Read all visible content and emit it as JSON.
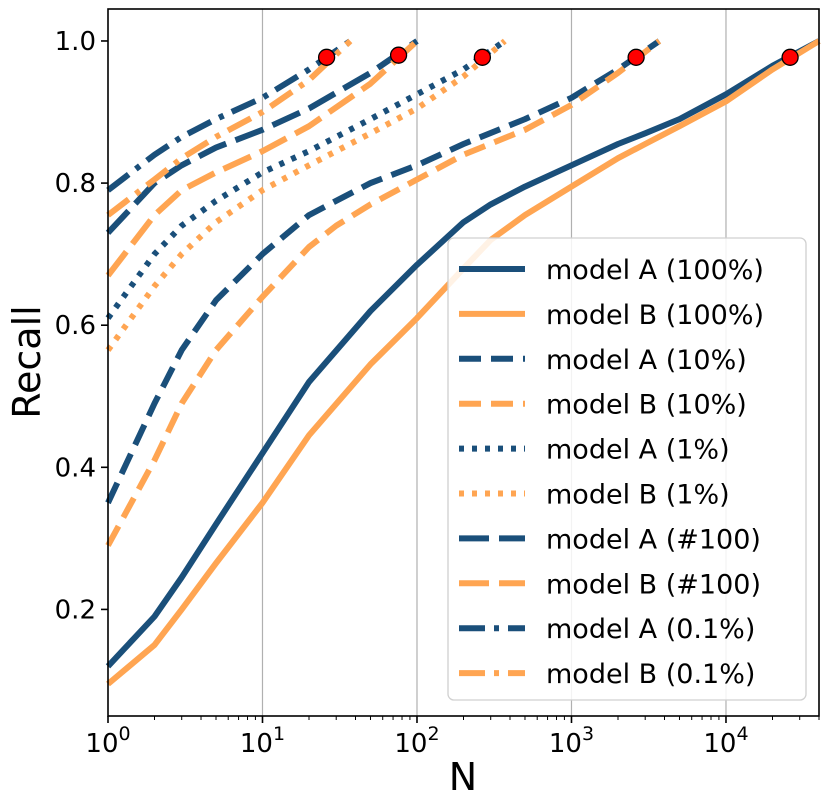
{
  "chart_data": {
    "type": "line",
    "title": "",
    "xlabel": "N",
    "ylabel": "Recall",
    "xscale": "log",
    "xlim": [
      1,
      40000
    ],
    "ylim": [
      0.05,
      1.045
    ],
    "grid": "vertical",
    "legend_position": "lower-right",
    "x_tick_labels": [
      {
        "base": "10",
        "exp": "0",
        "value": 1
      },
      {
        "base": "10",
        "exp": "1",
        "value": 10
      },
      {
        "base": "10",
        "exp": "2",
        "value": 100
      },
      {
        "base": "10",
        "exp": "3",
        "value": 1000
      },
      {
        "base": "10",
        "exp": "4",
        "value": 10000
      }
    ],
    "y_tick_labels": [
      "0.2",
      "0.4",
      "0.6",
      "0.8",
      "1.0"
    ],
    "y_tick_values": [
      0.2,
      0.4,
      0.6,
      0.8,
      1.0
    ],
    "colors": {
      "model_a": "#1a4f7a",
      "model_b": "#ffa552",
      "marker": "#ff0000"
    },
    "series": [
      {
        "name": "model A (100%)",
        "model": "a",
        "style": "solid",
        "x": [
          1,
          2,
          3,
          5,
          10,
          20,
          50,
          100,
          200,
          300,
          500,
          1000,
          2000,
          3000,
          5000,
          10000,
          20000,
          40000
        ],
        "y": [
          0.12,
          0.19,
          0.245,
          0.32,
          0.42,
          0.52,
          0.62,
          0.685,
          0.745,
          0.77,
          0.795,
          0.825,
          0.855,
          0.87,
          0.89,
          0.925,
          0.965,
          1.0
        ]
      },
      {
        "name": "model B (100%)",
        "model": "b",
        "style": "solid",
        "x": [
          1,
          2,
          3,
          5,
          10,
          20,
          50,
          100,
          200,
          300,
          500,
          1000,
          2000,
          3000,
          5000,
          10000,
          20000,
          40000
        ],
        "y": [
          0.095,
          0.15,
          0.2,
          0.265,
          0.35,
          0.445,
          0.545,
          0.61,
          0.68,
          0.72,
          0.755,
          0.795,
          0.835,
          0.855,
          0.88,
          0.915,
          0.96,
          1.0
        ]
      },
      {
        "name": "model A (10%)",
        "model": "a",
        "style": "dashed",
        "x": [
          1,
          2,
          3,
          5,
          10,
          20,
          30,
          50,
          100,
          200,
          500,
          1000,
          2000,
          3700
        ],
        "y": [
          0.35,
          0.49,
          0.565,
          0.635,
          0.7,
          0.755,
          0.775,
          0.8,
          0.825,
          0.855,
          0.89,
          0.92,
          0.96,
          1.0
        ]
      },
      {
        "name": "model B (10%)",
        "model": "b",
        "style": "dashed",
        "x": [
          1,
          2,
          3,
          5,
          10,
          20,
          30,
          50,
          100,
          200,
          500,
          1000,
          2000,
          3700
        ],
        "y": [
          0.29,
          0.41,
          0.49,
          0.565,
          0.64,
          0.71,
          0.74,
          0.77,
          0.805,
          0.84,
          0.875,
          0.91,
          0.955,
          1.0
        ]
      },
      {
        "name": "model A (1%)",
        "model": "a",
        "style": "dotted",
        "x": [
          1,
          2,
          3,
          5,
          10,
          20,
          50,
          100,
          200,
          370
        ],
        "y": [
          0.61,
          0.7,
          0.74,
          0.775,
          0.815,
          0.845,
          0.89,
          0.925,
          0.96,
          1.0
        ]
      },
      {
        "name": "model B (1%)",
        "model": "b",
        "style": "dotted",
        "x": [
          1,
          2,
          3,
          5,
          10,
          20,
          50,
          100,
          200,
          370
        ],
        "y": [
          0.565,
          0.655,
          0.7,
          0.745,
          0.79,
          0.825,
          0.87,
          0.905,
          0.95,
          1.0
        ]
      },
      {
        "name": "model A (#100)",
        "model": "a",
        "style": "longdash",
        "x": [
          1,
          2,
          3,
          5,
          10,
          20,
          50,
          100
        ],
        "y": [
          0.73,
          0.8,
          0.825,
          0.85,
          0.875,
          0.905,
          0.955,
          1.0
        ]
      },
      {
        "name": "model B (#100)",
        "model": "b",
        "style": "longdash",
        "x": [
          1,
          2,
          3,
          5,
          10,
          20,
          50,
          100
        ],
        "y": [
          0.67,
          0.755,
          0.79,
          0.815,
          0.845,
          0.88,
          0.94,
          1.0
        ]
      },
      {
        "name": "model A (0.1%)",
        "model": "a",
        "style": "dashdot",
        "x": [
          1,
          2,
          3,
          5,
          10,
          20,
          37
        ],
        "y": [
          0.79,
          0.84,
          0.865,
          0.89,
          0.92,
          0.96,
          1.0
        ]
      },
      {
        "name": "model B (0.1%)",
        "model": "b",
        "style": "dashdot",
        "x": [
          1,
          2,
          3,
          5,
          10,
          20,
          37
        ],
        "y": [
          0.755,
          0.805,
          0.835,
          0.865,
          0.9,
          0.945,
          1.0
        ]
      }
    ],
    "markers": [
      {
        "x": 26,
        "y": 0.977
      },
      {
        "x": 76,
        "y": 0.98
      },
      {
        "x": 265,
        "y": 0.977
      },
      {
        "x": 2620,
        "y": 0.977
      },
      {
        "x": 26000,
        "y": 0.977
      }
    ]
  }
}
